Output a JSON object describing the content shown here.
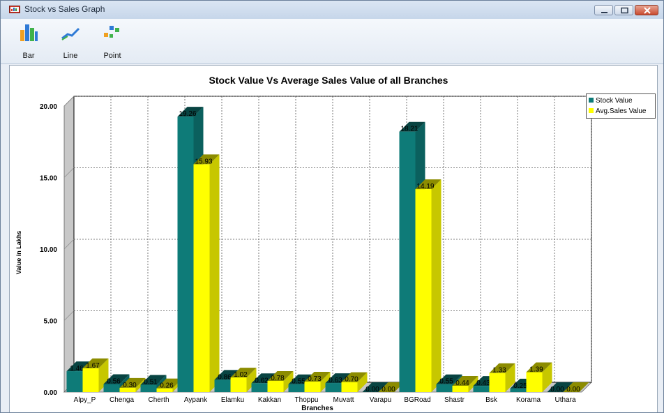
{
  "window": {
    "title": "Stock vs Sales Graph"
  },
  "toolbar": {
    "bar_label": "Bar",
    "line_label": "Line",
    "point_label": "Point"
  },
  "colors": {
    "stock": "#0e7b78",
    "sales": "#ffff00"
  },
  "chart_data": {
    "type": "bar",
    "title": "Stock Value Vs Average Sales Value of all Branches",
    "xlabel": "Branches",
    "ylabel": "Value in Lakhs",
    "ylim": [
      0,
      20
    ],
    "yticks": [
      "0.00",
      "5.00",
      "10.00",
      "15.00",
      "20.00"
    ],
    "grid": true,
    "legend_position": "top-right",
    "categories": [
      "Alpy_P",
      "Chenga",
      "Cherth",
      "Aypank",
      "Elamku",
      "Kakkan",
      "Thoppu",
      "Muvatt",
      "Varapu",
      "BGRoad",
      "Shastr",
      "Bsk",
      "Korama",
      "Uthara"
    ],
    "series": [
      {
        "name": "Stock Value",
        "values": [
          1.46,
          0.56,
          0.51,
          19.26,
          0.86,
          0.62,
          0.55,
          0.63,
          0.0,
          18.21,
          0.55,
          0.43,
          0.25,
          0.0
        ],
        "labels": [
          "1.46",
          "0.56",
          "0.51",
          "19.26",
          "0.86",
          "0.62",
          "0.55",
          "0.63",
          "0.00",
          "18.21",
          "0.55",
          "0.43",
          "0.25",
          "0.00"
        ]
      },
      {
        "name": "Avg.Sales Value",
        "values": [
          1.67,
          0.3,
          0.26,
          15.93,
          1.02,
          0.78,
          0.73,
          0.7,
          0.0,
          14.19,
          0.44,
          1.33,
          1.39,
          0.0
        ],
        "labels": [
          "1.67",
          "0.30",
          "0.26",
          "15.93",
          "1.02",
          "0.78",
          "0.73",
          "0.70",
          "0.00",
          "14.19",
          "0.44",
          "1.33",
          "1.39",
          "0.00"
        ]
      }
    ]
  }
}
